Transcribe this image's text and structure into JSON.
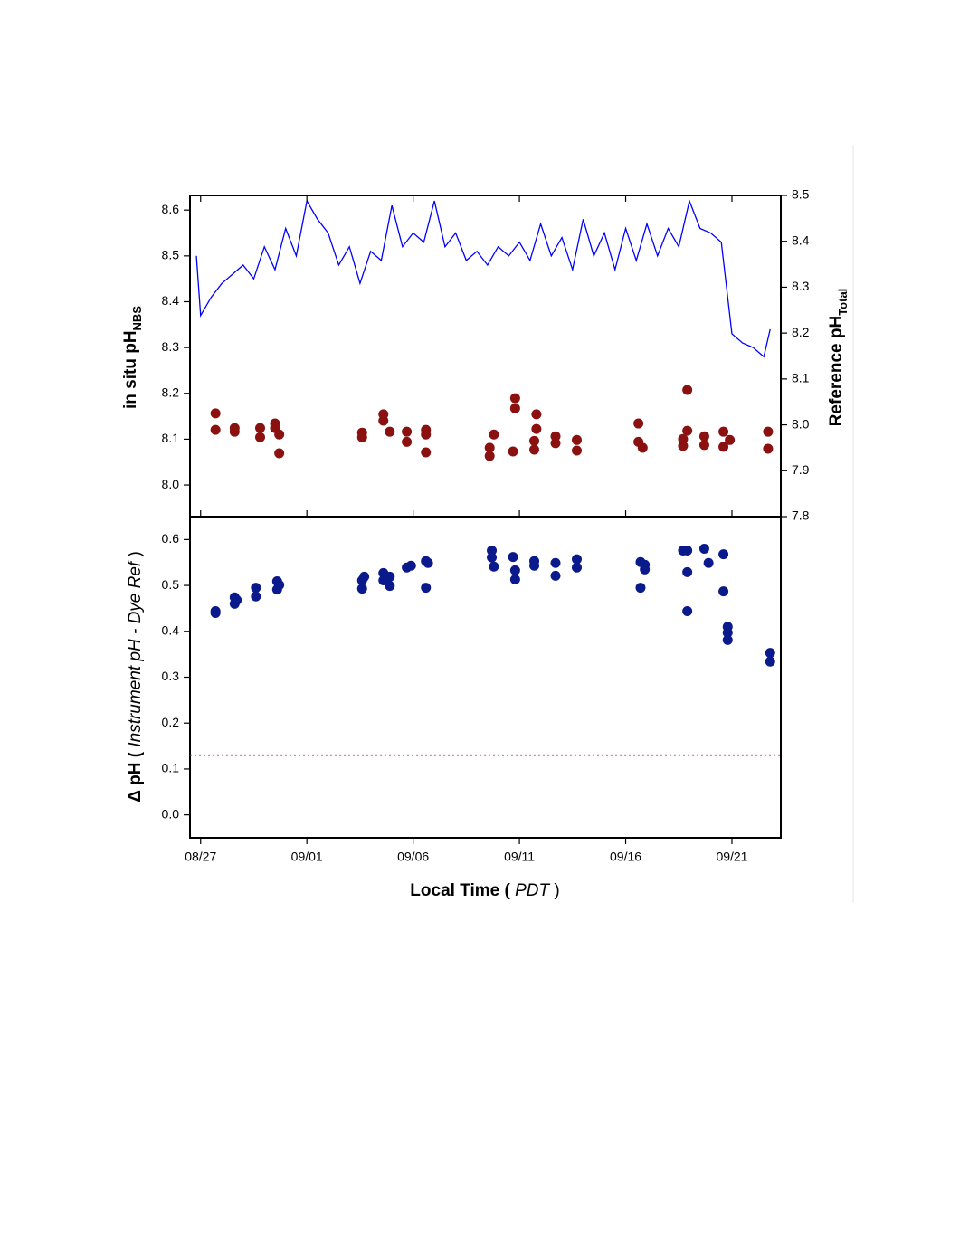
{
  "chart_data": [
    {
      "type": "line",
      "ylabel": "in situ pH",
      "ylabel_sub": "NBS",
      "y2label": "Reference pH",
      "y2label_sub": "Total",
      "xlim": [
        -0.5,
        27.3
      ],
      "ylim": [
        7.931,
        8.632
      ],
      "yticks": [
        {
          "value": 8,
          "label": "8.0"
        },
        8.1,
        8.2,
        8.3,
        8.4,
        8.5,
        8.6
      ],
      "y2lim": [
        7.8,
        8.5
      ],
      "y2ticks": [
        7.8,
        7.9,
        {
          "value": 8,
          "label": "8.0"
        },
        8.1,
        8.2,
        8.3,
        8.4,
        8.5
      ],
      "series": [
        {
          "type": "line",
          "color": "#0000ff",
          "x": [
            -0.2,
            0,
            0.5,
            1,
            1.5,
            2,
            2.5,
            3,
            3.5,
            4,
            4.5,
            5,
            5.5,
            6,
            6.5,
            7,
            7.5,
            8,
            8.5,
            9,
            9.5,
            10,
            10.5,
            11,
            11.5,
            12,
            12.5,
            13,
            13.5,
            14,
            14.5,
            15,
            15.5,
            16,
            16.5,
            17,
            17.5,
            18,
            18.5,
            19,
            19.5,
            20,
            20.5,
            21,
            21.5,
            22,
            22.5,
            23,
            23.5,
            24,
            24.5,
            25,
            25.5,
            26,
            26.5,
            26.8
          ],
          "values": [
            8.5,
            8.37,
            8.41,
            8.44,
            8.46,
            8.48,
            8.45,
            8.52,
            8.47,
            8.56,
            8.5,
            8.62,
            8.58,
            8.55,
            8.48,
            8.52,
            8.44,
            8.51,
            8.49,
            8.61,
            8.52,
            8.55,
            8.53,
            8.62,
            8.52,
            8.55,
            8.49,
            8.51,
            8.48,
            8.52,
            8.5,
            8.53,
            8.49,
            8.57,
            8.5,
            8.54,
            8.47,
            8.58,
            8.5,
            8.55,
            8.47,
            8.56,
            8.49,
            8.57,
            8.5,
            8.56,
            8.52,
            8.62,
            8.56,
            8.55,
            8.53,
            8.33,
            8.31,
            8.3,
            8.28,
            8.34
          ]
        },
        {
          "type": "scatter",
          "axis": "y2",
          "color": "#8b1010",
          "x": [
            0.7,
            0.7,
            1.6,
            1.6,
            2.8,
            2.8,
            3.5,
            3.5,
            3.7,
            3.7,
            7.6,
            7.6,
            8.6,
            8.6,
            8.9,
            9.7,
            9.7,
            10.6,
            10.6,
            10.6,
            13.6,
            13.6,
            13.8,
            14.7,
            14.8,
            14.8,
            15.7,
            15.7,
            15.8,
            15.8,
            16.7,
            16.7,
            17.7,
            17.7,
            20.6,
            20.6,
            20.8,
            22.7,
            22.7,
            22.9,
            22.9,
            23.7,
            23.7,
            24.6,
            24.6,
            24.9,
            26.7,
            26.7
          ],
          "values": [
            8.025,
            7.989,
            7.993,
            7.985,
            7.993,
            7.973,
            8.003,
            7.993,
            7.979,
            7.938,
            7.983,
            7.973,
            8.009,
            8.023,
            7.985,
            7.963,
            7.985,
            7.979,
            7.94,
            7.989,
            7.95,
            7.932,
            7.979,
            7.942,
            8.058,
            8.036,
            7.946,
            7.965,
            8.023,
            7.991,
            7.975,
            7.96,
            7.967,
            7.944,
            8.003,
            7.963,
            7.95,
            7.954,
            7.969,
            8.076,
            7.987,
            7.975,
            7.956,
            7.952,
            7.985,
            7.967,
            7.985,
            7.948
          ]
        }
      ]
    },
    {
      "type": "scatter",
      "ylabel_parts": [
        "Δ pH  (",
        "Instrument pH - Dye Ref",
        ")"
      ],
      "xlabel_parts": [
        "Local Time (",
        "PDT",
        ")"
      ],
      "xlim": [
        -0.5,
        27.3
      ],
      "xticks": [
        {
          "value": 0,
          "label": "08/27"
        },
        {
          "value": 5,
          "label": "09/01"
        },
        {
          "value": 10,
          "label": "09/06"
        },
        {
          "value": 15,
          "label": "09/11"
        },
        {
          "value": 20,
          "label": "09/16"
        },
        {
          "value": 25,
          "label": "09/21"
        }
      ],
      "ylim": [
        -0.05,
        0.65
      ],
      "yticks": [
        {
          "value": 0,
          "label": "0.0"
        },
        0.1,
        0.2,
        0.3,
        0.4,
        0.5,
        0.6
      ],
      "reference_line": {
        "value": 0.13,
        "color": "#a52a2a"
      },
      "series": [
        {
          "type": "scatter",
          "color": "#0a1a8c",
          "x": [
            0.7,
            0.7,
            1.6,
            1.6,
            1.7,
            2.6,
            2.6,
            3.6,
            3.6,
            3.7,
            7.6,
            7.6,
            7.7,
            8.6,
            8.6,
            8.9,
            8.9,
            9.7,
            9.9,
            10.6,
            10.6,
            10.7,
            13.7,
            13.7,
            13.8,
            14.7,
            14.8,
            14.8,
            15.7,
            15.7,
            16.7,
            16.7,
            17.7,
            17.7,
            20.7,
            20.7,
            20.9,
            20.9,
            22.7,
            22.9,
            22.9,
            22.9,
            23.7,
            23.9,
            24.6,
            24.6,
            24.8,
            24.8,
            24.8,
            26.8,
            26.8
          ],
          "values": [
            0.444,
            0.44,
            0.46,
            0.474,
            0.468,
            0.476,
            0.495,
            0.491,
            0.509,
            0.501,
            0.493,
            0.511,
            0.519,
            0.527,
            0.511,
            0.499,
            0.519,
            0.539,
            0.543,
            0.495,
            0.553,
            0.549,
            0.561,
            0.576,
            0.541,
            0.562,
            0.513,
            0.533,
            0.553,
            0.543,
            0.549,
            0.521,
            0.539,
            0.557,
            0.495,
            0.551,
            0.535,
            0.545,
            0.576,
            0.444,
            0.529,
            0.576,
            0.58,
            0.549,
            0.568,
            0.487,
            0.41,
            0.397,
            0.381,
            0.353,
            0.334
          ]
        }
      ]
    }
  ]
}
